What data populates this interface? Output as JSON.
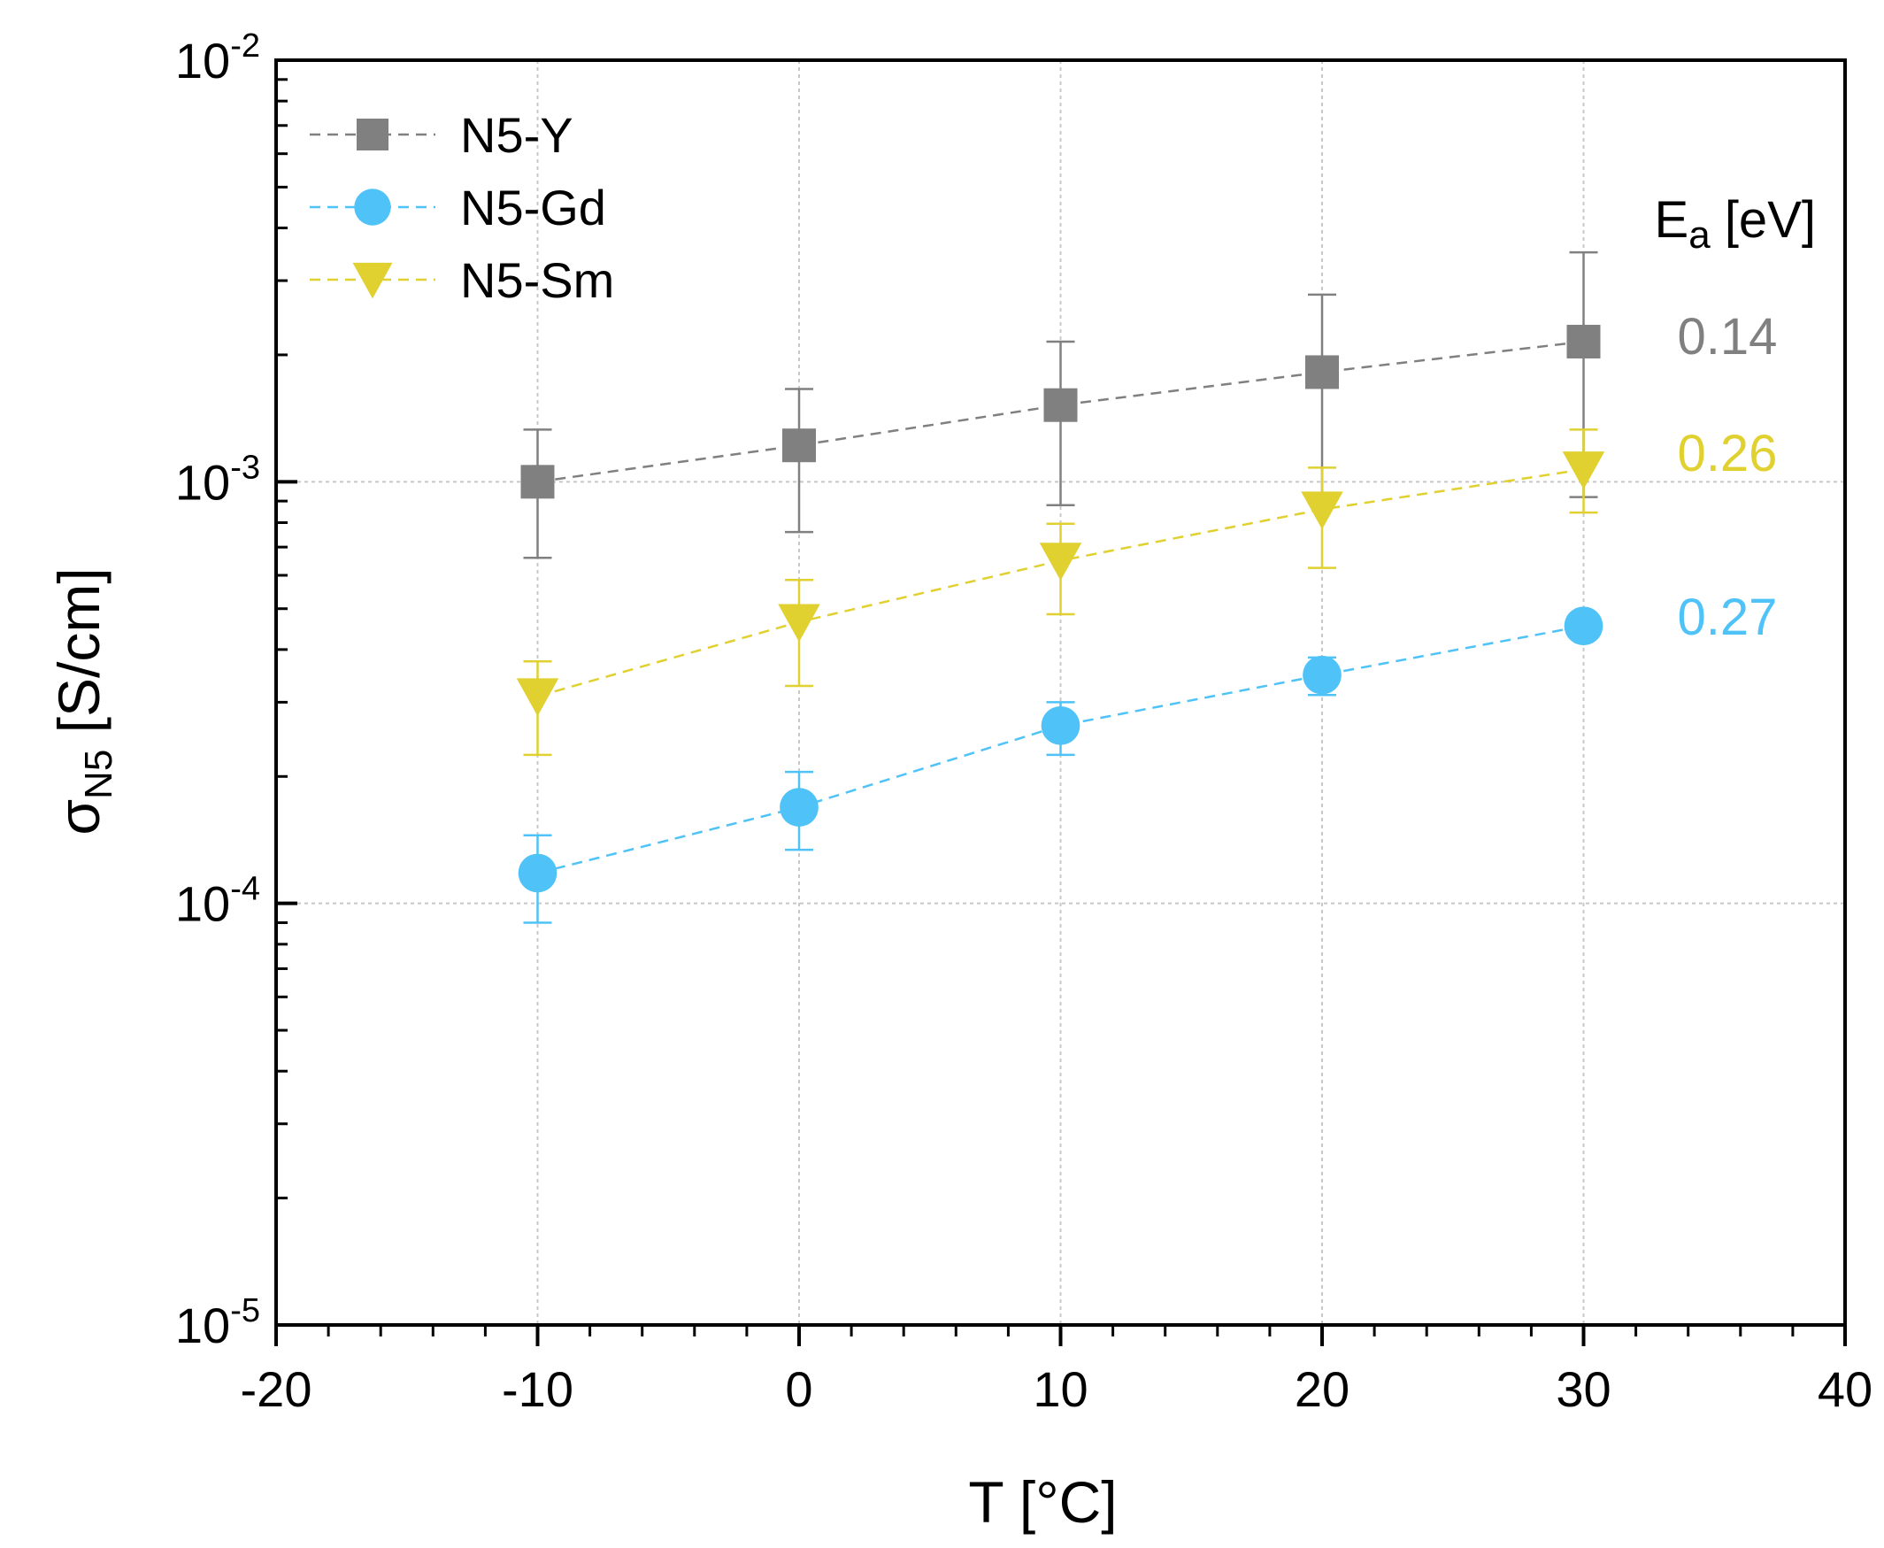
{
  "chart_data": {
    "type": "scatter",
    "xlabel": "T [°C]",
    "ylabel": {
      "main": "σ",
      "sub": "N5",
      "rest": " [S/cm]"
    },
    "xlim": [
      -20,
      40
    ],
    "ylim": [
      1e-05,
      0.01
    ],
    "yscale": "log",
    "x_ticks": [
      -20,
      -10,
      0,
      10,
      20,
      30,
      40
    ],
    "x_tick_labels": [
      "-20",
      "-10",
      "0",
      "10",
      "20",
      "30",
      "40"
    ],
    "y_ticks": [
      {
        "value": 1e-05,
        "base": "10",
        "exp": "-5"
      },
      {
        "value": 0.0001,
        "base": "10",
        "exp": "-4"
      },
      {
        "value": 0.001,
        "base": "10",
        "exp": "-3"
      },
      {
        "value": 0.01,
        "base": "10",
        "exp": "-2"
      }
    ],
    "grid": true,
    "legend_position": "top-left",
    "ea_header": {
      "main": "E",
      "sub": "a",
      "rest": " [eV]"
    },
    "series": [
      {
        "name": "N5-Y",
        "marker": "square",
        "color": "#808080",
        "x": [
          -10,
          0,
          10,
          20,
          30
        ],
        "y": [
          0.001,
          0.00122,
          0.00152,
          0.00182,
          0.00215
        ],
        "err_low": [
          0.00066,
          0.00076,
          0.00088,
          0.00089,
          0.00092
        ],
        "err_high": [
          0.00133,
          0.00166,
          0.00215,
          0.00278,
          0.0035
        ],
        "ea": "0.14"
      },
      {
        "name": "N5-Gd",
        "marker": "circle",
        "color": "#4fc3f7",
        "x": [
          -10,
          0,
          10,
          20,
          30
        ],
        "y": [
          0.000118,
          0.000169,
          0.000264,
          0.000348,
          0.000455
        ],
        "err_low": [
          9e-05,
          0.000134,
          0.000225,
          0.000312,
          0.000455
        ],
        "err_high": [
          0.000145,
          0.000205,
          0.0003,
          0.000383,
          0.000455
        ],
        "ea": "0.27"
      },
      {
        "name": "N5-Sm",
        "marker": "triangle-down",
        "color": "#e0d030",
        "x": [
          -10,
          0,
          10,
          20,
          30
        ],
        "y": [
          0.00031,
          0.000465,
          0.00065,
          0.00086,
          0.00107
        ],
        "err_low": [
          0.000225,
          0.000328,
          0.000485,
          0.000625,
          0.000845
        ],
        "err_high": [
          0.000375,
          0.000585,
          0.000795,
          0.00108,
          0.00133
        ],
        "ea": "0.26"
      }
    ]
  }
}
